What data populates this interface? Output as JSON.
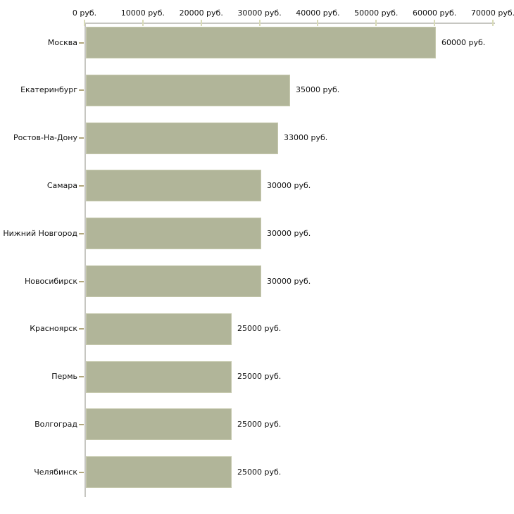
{
  "chart_data": {
    "type": "bar",
    "orientation": "horizontal",
    "title": "",
    "unit": "руб.",
    "categories": [
      "Москва",
      "Екатеринбург",
      "Ростов-На-Дону",
      "Самара",
      "Нижний Новгород",
      "Новосибирск",
      "Красноярск",
      "Пермь",
      "Волгоград",
      "Челябинск"
    ],
    "values": [
      60000,
      35000,
      33000,
      30000,
      30000,
      30000,
      25000,
      25000,
      25000,
      25000
    ],
    "value_labels": [
      "60000 руб.",
      "35000 руб.",
      "33000 руб.",
      "30000 руб.",
      "30000 руб.",
      "30000 руб.",
      "25000 руб.",
      "25000 руб.",
      "25000 руб.",
      "25000 руб."
    ],
    "x_axis": {
      "position": "top",
      "min": 0,
      "max": 70000,
      "ticks": [
        0,
        10000,
        20000,
        30000,
        40000,
        50000,
        60000,
        70000
      ],
      "tick_labels": [
        "0 руб.",
        "10000 руб.",
        "20000 руб.",
        "30000 руб.",
        "40000 руб.",
        "50000 руб.",
        "60000 руб.",
        "70000 руб."
      ]
    },
    "grid": false,
    "legend": false,
    "colors": {
      "bar_fill": "#b1b599",
      "bar_edge": "#c6c9ae",
      "axis_line": "#c6c6c1",
      "x_tick_mark": "#d9dbb8",
      "y_tick_mark": "#b0a67c",
      "text": "#111111",
      "background": "#ffffff"
    }
  }
}
